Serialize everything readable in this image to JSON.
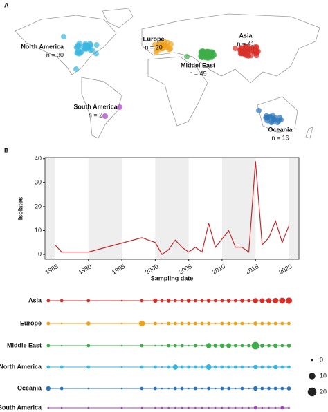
{
  "map": {
    "panel": "A",
    "regions": [
      {
        "name": "North America",
        "count": "n = 30",
        "color": "#3bb6df"
      },
      {
        "name": "Europe",
        "count": "n = 20",
        "color": "#f0a11b"
      },
      {
        "name": "Middel East",
        "count": "n = 45",
        "color": "#3fae4a"
      },
      {
        "name": "Asia",
        "count": "n = 41",
        "color": "#d6302a"
      },
      {
        "name": "South America",
        "count": "n = 2",
        "color": "#a43fc0"
      },
      {
        "name": "Oceania",
        "count": "n = 16",
        "color": "#2c76bb"
      }
    ]
  },
  "chart_data": [
    {
      "type": "line",
      "panel": "B",
      "x_label": "Sampling date",
      "y_label": "Isolates",
      "color": "#c0282d",
      "x": [
        1985,
        1986,
        1990,
        1998,
        2000,
        2001,
        2002,
        2003,
        2004,
        2005,
        2006,
        2007,
        2008,
        2009,
        2011,
        2012,
        2013,
        2014,
        2015,
        2016,
        2017,
        2018,
        2019,
        2020
      ],
      "values": [
        4,
        1,
        1,
        7,
        5,
        0,
        2,
        6,
        3,
        1,
        3,
        1,
        13,
        3,
        10,
        3,
        3,
        1,
        39,
        4,
        7,
        14,
        5,
        12
      ],
      "xlim": [
        1983.5,
        2021.5
      ],
      "xticks": [
        1985,
        1990,
        1995,
        2000,
        2005,
        2010,
        2015,
        2020
      ],
      "ylim": [
        -2,
        40.5
      ],
      "yticks": [
        0,
        10,
        20,
        30,
        40
      ]
    },
    {
      "type": "dot",
      "xlim": [
        1983.5,
        2021.5
      ],
      "size_legend": [
        0,
        10,
        20
      ],
      "series": [
        {
          "name": "Asia",
          "color": "#d6302a",
          "x": [
            1984,
            1986,
            1990,
            1995,
            1998,
            2000,
            2001,
            2002,
            2003,
            2004,
            2005,
            2006,
            2007,
            2008,
            2009,
            2010,
            2011,
            2012,
            2013,
            2014,
            2015,
            2016,
            2017,
            2018,
            2019,
            2020
          ],
          "values": [
            1,
            1,
            1,
            0,
            1,
            3,
            1,
            2,
            1,
            1,
            2,
            1,
            1,
            2,
            1,
            1,
            2,
            1,
            2,
            1,
            5,
            4,
            5,
            6,
            8,
            9
          ]
        },
        {
          "name": "Europe",
          "color": "#f0a11b",
          "x": [
            1984,
            1986,
            1990,
            1995,
            1998,
            2000,
            2001,
            2002,
            2003,
            2004,
            2005,
            2006,
            2007,
            2008,
            2009,
            2010,
            2011,
            2012,
            2013,
            2014,
            2015,
            2016,
            2017,
            2018,
            2019,
            2020
          ],
          "values": [
            1,
            0,
            2,
            0,
            7,
            1,
            0,
            1,
            1,
            1,
            1,
            1,
            1,
            1,
            0,
            1,
            1,
            1,
            1,
            0,
            2,
            1,
            1,
            1,
            1,
            1
          ]
        },
        {
          "name": "Middle East",
          "color": "#3fae4a",
          "x": [
            1984,
            1986,
            1990,
            1995,
            1998,
            2000,
            2001,
            2002,
            2003,
            2004,
            2005,
            2006,
            2007,
            2008,
            2009,
            2010,
            2011,
            2012,
            2013,
            2014,
            2015,
            2016,
            2017,
            2018,
            2019,
            2020
          ],
          "values": [
            1,
            0,
            1,
            0,
            1,
            0,
            0,
            1,
            1,
            1,
            0,
            1,
            0,
            5,
            2,
            3,
            4,
            1,
            1,
            1,
            14,
            2,
            1,
            3,
            1,
            2
          ]
        },
        {
          "name": "North America",
          "color": "#3bb6df",
          "x": [
            1984,
            1986,
            1990,
            1995,
            1998,
            2000,
            2001,
            2002,
            2003,
            2004,
            2005,
            2006,
            2007,
            2008,
            2009,
            2010,
            2011,
            2012,
            2013,
            2014,
            2015,
            2016,
            2017,
            2018,
            2019,
            2020
          ],
          "values": [
            1,
            1,
            1,
            0,
            1,
            1,
            0,
            1,
            5,
            1,
            1,
            1,
            1,
            6,
            1,
            1,
            1,
            1,
            1,
            0,
            3,
            1,
            1,
            3,
            1,
            1
          ]
        },
        {
          "name": "Oceania",
          "color": "#2c76bb",
          "x": [
            1984,
            1986,
            1990,
            1995,
            1998,
            2000,
            2001,
            2002,
            2003,
            2004,
            2005,
            2006,
            2007,
            2008,
            2009,
            2010,
            2011,
            2012,
            2013,
            2014,
            2015,
            2016,
            2017,
            2018,
            2019,
            2020
          ],
          "values": [
            3,
            1,
            0,
            0,
            1,
            1,
            0,
            0,
            1,
            1,
            0,
            1,
            0,
            1,
            0,
            1,
            1,
            0,
            1,
            0,
            3,
            1,
            1,
            1,
            1,
            2
          ]
        },
        {
          "name": "South America",
          "color": "#a43fc0",
          "x": [
            1984,
            1986,
            1990,
            1995,
            1998,
            2000,
            2001,
            2002,
            2003,
            2004,
            2005,
            2006,
            2007,
            2008,
            2009,
            2010,
            2011,
            2012,
            2013,
            2014,
            2015,
            2016,
            2017,
            2018,
            2019,
            2020
          ],
          "values": [
            0,
            0,
            0,
            0,
            0,
            0,
            0,
            0,
            0,
            0,
            0,
            0,
            0,
            0,
            0,
            0,
            0,
            0,
            0,
            0,
            1,
            0,
            0,
            0,
            1,
            0
          ]
        }
      ]
    }
  ]
}
